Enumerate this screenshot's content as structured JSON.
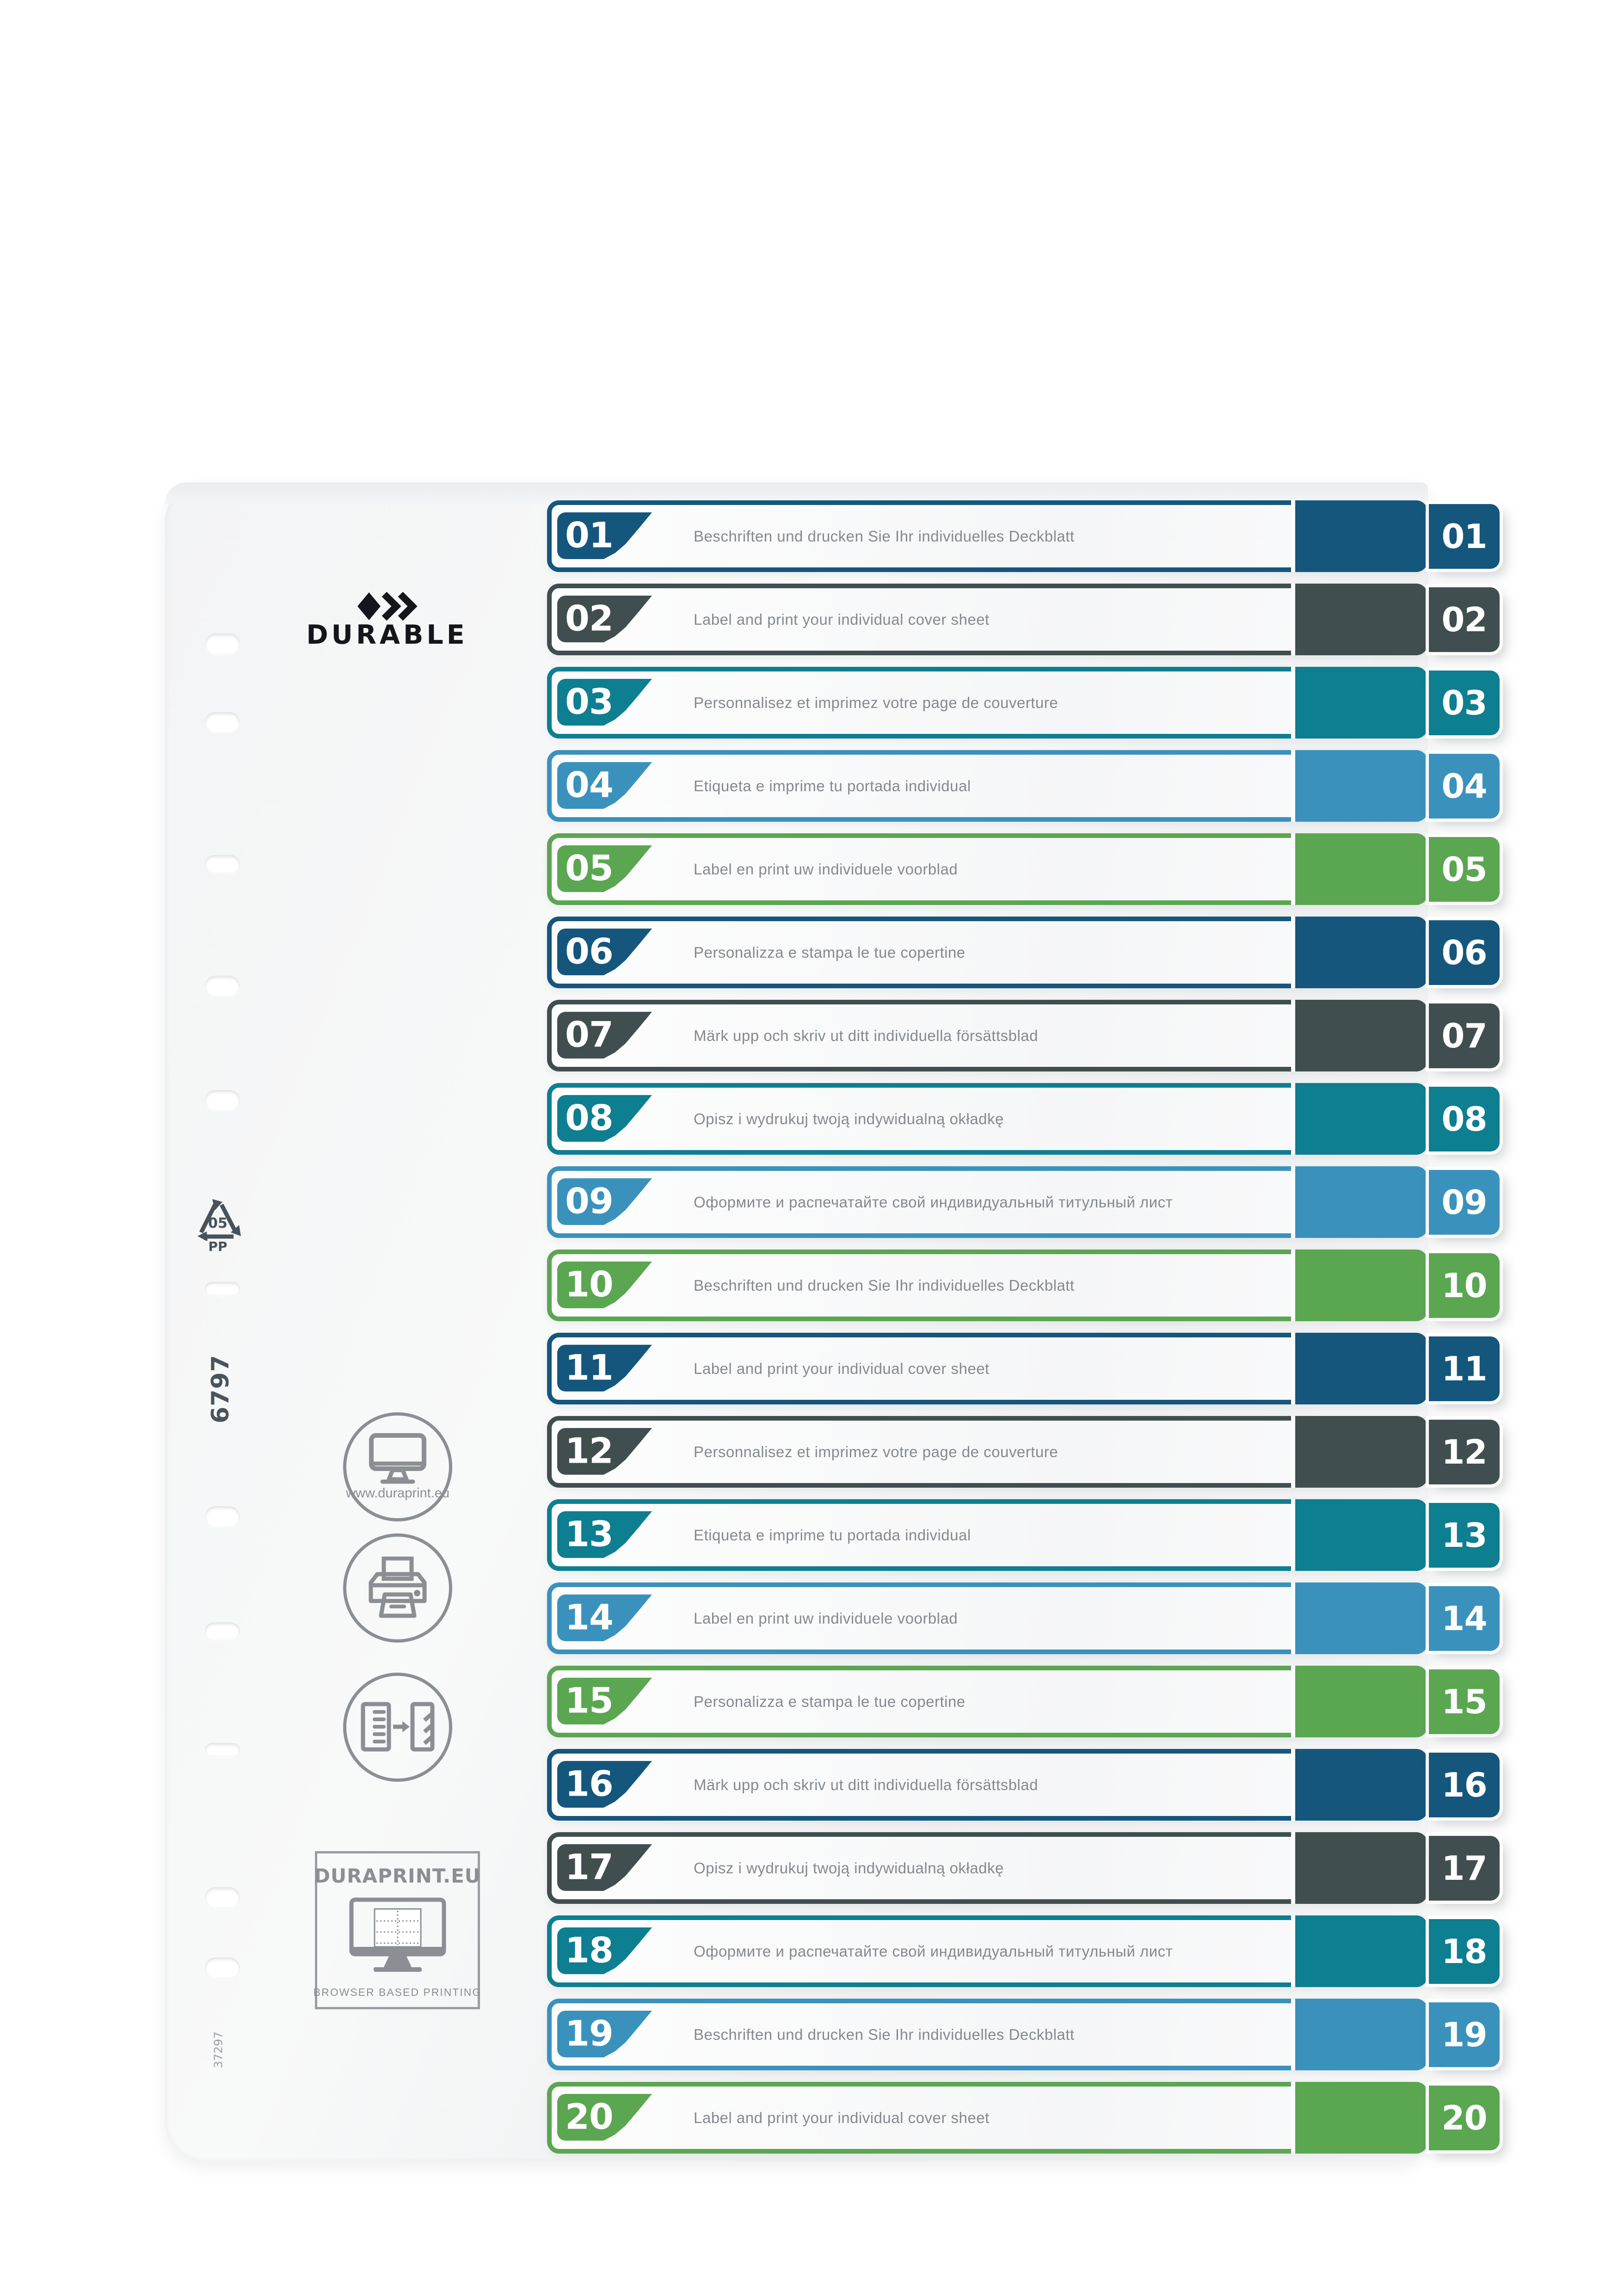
{
  "palette": {
    "navy": "#15567d",
    "slate": "#414e50",
    "teal": "#0e7e91",
    "blue": "#3a92bc",
    "green": "#5ba651",
    "row_text_gray": "#85898e",
    "icon_gray": "#8b8e93",
    "logo_black": "#15151c"
  },
  "sheet": {
    "logo": {
      "brand": "DURABLE"
    },
    "recycling": {
      "code": "05",
      "material": "PP"
    },
    "item_number_vertical": "6797",
    "batch_number_vertical": "37297",
    "info_circles": {
      "website_label": "www.duraprint.eu"
    },
    "duraprint_box": {
      "title": "DURAPRINT.EU",
      "subtitle": "BROWSER BASED PRINTING"
    }
  },
  "rows": [
    {
      "number": "01",
      "color": "navy",
      "text": "Beschriften und drucken Sie Ihr individuelles Deckblatt"
    },
    {
      "number": "02",
      "color": "slate",
      "text": "Label and print your individual cover sheet"
    },
    {
      "number": "03",
      "color": "teal",
      "text": "Personnalisez et imprimez votre page de couverture"
    },
    {
      "number": "04",
      "color": "blue",
      "text": "Etiqueta e imprime tu portada individual"
    },
    {
      "number": "05",
      "color": "green",
      "text": "Label en print uw individuele voorblad"
    },
    {
      "number": "06",
      "color": "navy",
      "text": "Personalizza e stampa le tue copertine"
    },
    {
      "number": "07",
      "color": "slate",
      "text": "Märk upp och skriv ut ditt individuella försättsblad"
    },
    {
      "number": "08",
      "color": "teal",
      "text": "Opisz i wydrukuj twoją indywidualną okładkę"
    },
    {
      "number": "09",
      "color": "blue",
      "text": "Оформите и распечатайте свой индивидуальный титульный лист"
    },
    {
      "number": "10",
      "color": "green",
      "text": "Beschriften und drucken Sie Ihr individuelles Deckblatt"
    },
    {
      "number": "11",
      "color": "navy",
      "text": "Label and print your individual cover sheet"
    },
    {
      "number": "12",
      "color": "slate",
      "text": "Personnalisez et imprimez votre page de couverture"
    },
    {
      "number": "13",
      "color": "teal",
      "text": "Etiqueta e imprime tu portada individual"
    },
    {
      "number": "14",
      "color": "blue",
      "text": "Label en print uw individuele voorblad"
    },
    {
      "number": "15",
      "color": "green",
      "text": "Personalizza e stampa le tue copertine"
    },
    {
      "number": "16",
      "color": "navy",
      "text": "Märk upp och skriv ut ditt individuella försättsblad"
    },
    {
      "number": "17",
      "color": "slate",
      "text": "Opisz i wydrukuj twoją indywidualną okładkę"
    },
    {
      "number": "18",
      "color": "teal",
      "text": "Оформите и распечатайте свой индивидуальный титульный лист"
    },
    {
      "number": "19",
      "color": "blue",
      "text": "Beschriften und drucken Sie Ihr individuelles Deckblatt"
    },
    {
      "number": "20",
      "color": "green",
      "text": "Label and print your individual cover sheet"
    }
  ]
}
